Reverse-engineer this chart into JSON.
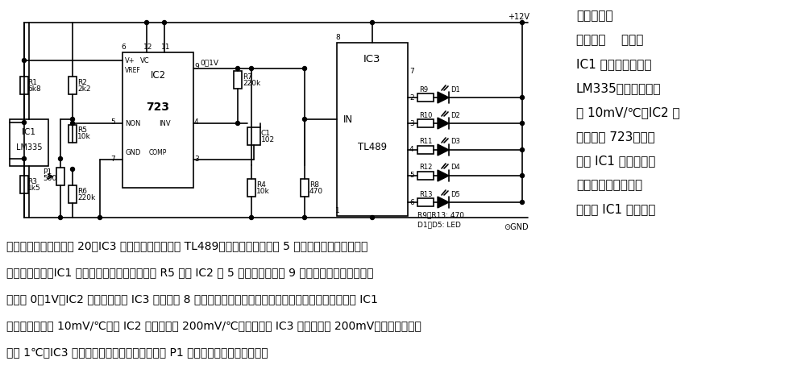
{
  "bg_color": "#ffffff",
  "circuit_color": "#000000",
  "right_text_lines": [
    "简易电子温",
    "度指示器    电路中",
    "IC1 是温度传感器件",
    "LM335，温度灵敏度",
    "为 10mV/℃；IC2 是",
    "稳压器件 723，它既",
    "可向 IC1 提供稳定的",
    "工作电流，又作为放",
    "大器对 IC1 的输出信"
  ],
  "bottom_text_lines": [
    "号进行放大，放大系数 20；IC3 是五级电平检测器件 TL489，将不同的温度值用 5 只发光二极管分别表示。",
    "当温度变化时，IC1 的＋端电位发生变化，通过 R5 加到 IC2 的 5 脚，使其输出端 9 脚的电位发生变化，变化",
    "范围为 0～1V。IC2 输出信号加到 IC3 的输入端 8 脚。根据电平的大小分别点亮一个或多个发光管。由于 IC1",
    "的温度灵敏度为 10mV/℃，经 IC2 放大后变为 200mV/℃，所以可设 IC3 的门电平为 200mV。这样，温度每",
    "升高 1℃，IC3 就多点亮一个发光管。通过调节 P1 可以改变电路的测量范围。"
  ]
}
